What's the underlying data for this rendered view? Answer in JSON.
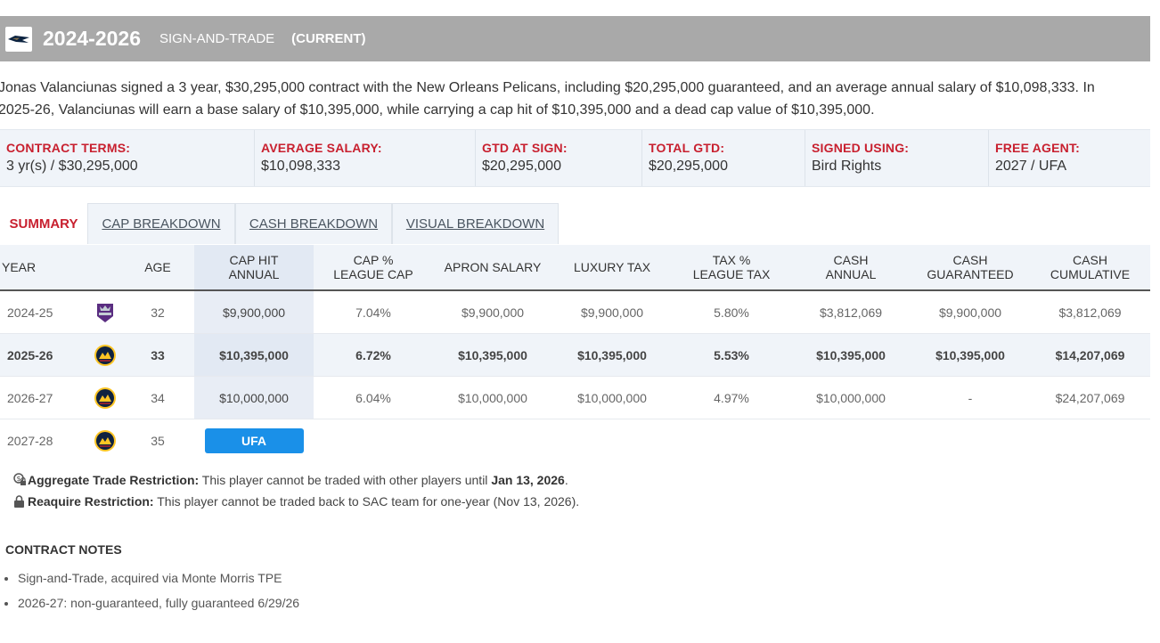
{
  "header": {
    "years": "2024-2026",
    "type": "SIGN-AND-TRADE",
    "status": "(CURRENT)"
  },
  "description": {
    "line1": "Jonas Valanciunas signed a 3 year, $30,295,000 contract with the New Orleans Pelicans, including $20,295,000 guaranteed, and an average annual salary of $10,098,333. In",
    "line2": "2025-26, Valanciunas will earn a base salary of $10,395,000, while carrying a cap hit of $10,395,000 and a dead cap value of $10,395,000."
  },
  "terms": [
    {
      "label": "CONTRACT TERMS:",
      "value": "3 yr(s) / $30,295,000"
    },
    {
      "label": "AVERAGE SALARY:",
      "value": "$10,098,333"
    },
    {
      "label": "GTD AT SIGN:",
      "value": "$20,295,000"
    },
    {
      "label": "TOTAL GTD:",
      "value": "$20,295,000"
    },
    {
      "label": "SIGNED USING:",
      "value": "Bird Rights"
    },
    {
      "label": "FREE AGENT:",
      "value": "2027 / UFA"
    }
  ],
  "tabs": [
    "SUMMARY",
    "CAP BREAKDOWN",
    "CASH BREAKDOWN",
    "VISUAL BREAKDOWN"
  ],
  "table": {
    "headers": {
      "year": "YEAR",
      "age": "AGE",
      "cap_hit_1": "CAP HIT",
      "cap_hit_2": "ANNUAL",
      "cap_pct_1": "CAP %",
      "cap_pct_2": "LEAGUE CAP",
      "apron": "APRON SALARY",
      "luxury": "LUXURY TAX",
      "tax_pct_1": "TAX %",
      "tax_pct_2": "LEAGUE TAX",
      "cash_annual_1": "CASH",
      "cash_annual_2": "ANNUAL",
      "cash_gtd_1": "CASH",
      "cash_gtd_2": "GUARANTEED",
      "cash_cum_1": "CASH",
      "cash_cum_2": "CUMULATIVE"
    },
    "rows": [
      {
        "year": "2024-25",
        "team": "kings-logo",
        "age": "32",
        "cap_hit": "$9,900,000",
        "cap_pct": "7.04%",
        "apron": "$9,900,000",
        "luxury": "$9,900,000",
        "tax_pct": "5.80%",
        "cash_annual": "$3,812,069",
        "cash_gtd": "$9,900,000",
        "cash_cum": "$3,812,069"
      },
      {
        "year": "2025-26",
        "team": "nuggets-logo",
        "age": "33",
        "cap_hit": "$10,395,000",
        "cap_pct": "6.72%",
        "apron": "$10,395,000",
        "luxury": "$10,395,000",
        "tax_pct": "5.53%",
        "cash_annual": "$10,395,000",
        "cash_gtd": "$10,395,000",
        "cash_cum": "$14,207,069"
      },
      {
        "year": "2026-27",
        "team": "nuggets-logo",
        "age": "34",
        "cap_hit": "$10,000,000",
        "cap_pct": "6.04%",
        "apron": "$10,000,000",
        "luxury": "$10,000,000",
        "tax_pct": "4.97%",
        "cash_annual": "$10,000,000",
        "cash_gtd": "-",
        "cash_cum": "$24,207,069"
      },
      {
        "year": "2027-28",
        "team": "nuggets-logo",
        "age": "35",
        "status": "UFA"
      }
    ]
  },
  "restrictions": [
    {
      "icon": "dollar-lock-icon",
      "label": "Aggregate Trade Restriction:",
      "text": " This player cannot be traded with other players until ",
      "date": "Jan 13, 2026",
      "end": "."
    },
    {
      "icon": "lock-icon",
      "label": "Reaquire Restriction:",
      "text": " This player cannot be traded back to SAC team for one-year (Nov 13, 2026)."
    }
  ],
  "notes": {
    "title": "CONTRACT NOTES",
    "items": [
      "Sign-and-Trade, acquired via Monte Morris TPE",
      "2026-27: non-guaranteed, fully guaranteed 6/29/26"
    ]
  },
  "colors": {
    "accent_red": "#c8202f",
    "ufa_blue": "#1a90e8",
    "header_gray": "#a9a9a9",
    "nuggets_gold": "#fec524",
    "nuggets_navy": "#0e2240",
    "kings_purple": "#5a2d81"
  }
}
